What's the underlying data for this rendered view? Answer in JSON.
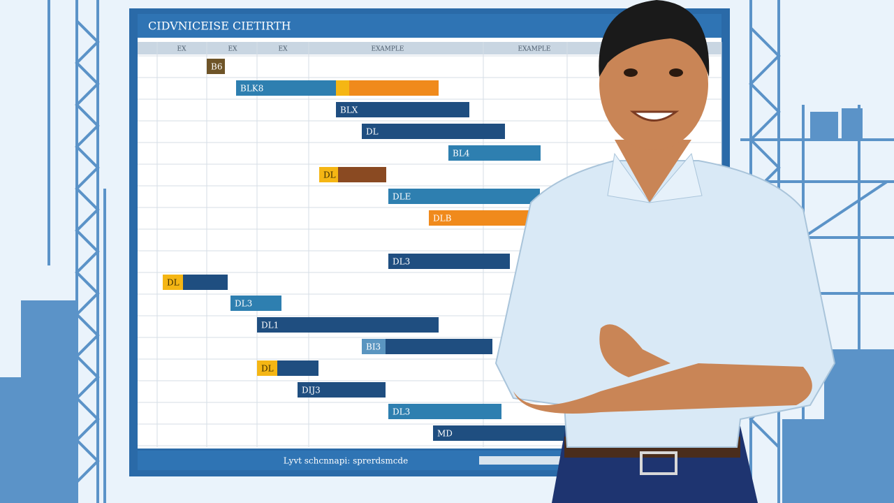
{
  "screen": {
    "title": "CIDVNICEISE CIETIRTH",
    "header": [
      "EX",
      "EX",
      "EX",
      "EXAMPLE",
      "EXAMPLE"
    ],
    "tasks": [
      "B6",
      "BLK8",
      "BLX",
      "DL",
      "BL4",
      "DL",
      "DLE",
      "DLB",
      "DL3",
      "DL",
      "DL3",
      "DL1",
      "BI3",
      "DL",
      "DIJ3",
      "DL3",
      "MD"
    ],
    "footer": "Lyvt schcnnapi: sprerdsmcde"
  }
}
